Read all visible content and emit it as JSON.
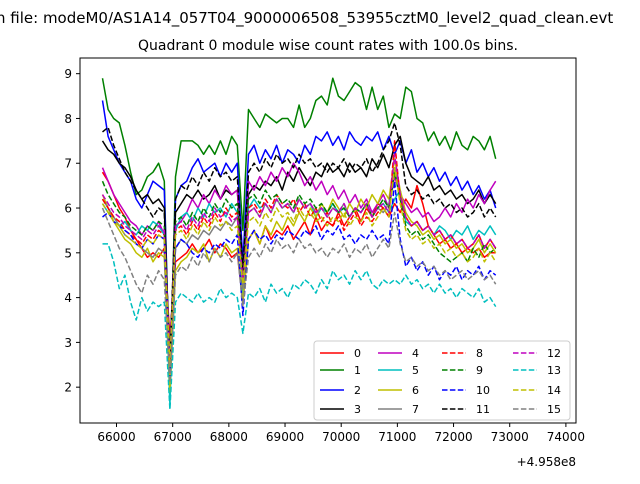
{
  "suptitle": "n file: modeM0/AS1A14_057T04_9000006508_53955cztM0_level2_quad_clean.evt",
  "chart_data": {
    "type": "line",
    "title": "Quadrant 0 module wise count rates with 100.0s bins.",
    "xlabel": "",
    "ylabel": "",
    "x_offset_label": "+4.958e8",
    "x_offset": 495800000,
    "xlim": [
      65350,
      74180
    ],
    "ylim": [
      1.2,
      9.35
    ],
    "x_ticks": [
      66000,
      67000,
      68000,
      69000,
      70000,
      71000,
      72000,
      73000,
      74000
    ],
    "x_tick_labels": [
      "66000",
      "67000",
      "68000",
      "69000",
      "70000",
      "71000",
      "72000",
      "73000",
      "74000"
    ],
    "y_ticks": [
      2,
      3,
      4,
      5,
      6,
      7,
      8,
      9
    ],
    "y_tick_labels": [
      "2",
      "3",
      "4",
      "5",
      "6",
      "7",
      "8",
      "9"
    ],
    "grid": false,
    "legend_position": "lower-right",
    "x_start": 65750,
    "x_step": 100,
    "series": [
      {
        "name": "0",
        "color": "#ff0000",
        "dash": "solid",
        "values": [
          6.8,
          6.6,
          6.3,
          6.0,
          5.8,
          5.5,
          5.3,
          5.1,
          4.9,
          5.0,
          4.9,
          5.1,
          3.1,
          4.8,
          4.9,
          5.0,
          5.2,
          5.0,
          5.1,
          5.3,
          5.0,
          5.2,
          5.1,
          4.9,
          5.0,
          3.9,
          5.3,
          5.5,
          5.2,
          5.6,
          5.3,
          5.5,
          5.4,
          5.6,
          5.3,
          5.5,
          5.7,
          5.4,
          5.8,
          5.5,
          5.7,
          5.6,
          5.9,
          5.6,
          5.8,
          6.0,
          5.7,
          6.0,
          5.8,
          6.1,
          6.0,
          5.8,
          6.1,
          5.9,
          6.2,
          6.0,
          6.5,
          6.1,
          5.6,
          5.4,
          5.2,
          5.3,
          5.1,
          5.2,
          5.0,
          5.1,
          5.0,
          5.1,
          4.9,
          5.0,
          5.0
        ]
      },
      {
        "name": "1",
        "color": "#008000",
        "dash": "solid",
        "values": [
          8.9,
          8.2,
          8.0,
          7.9,
          7.4,
          6.8,
          6.3,
          6.4,
          6.7,
          6.8,
          7.0,
          6.6,
          1.9,
          6.7,
          7.5,
          7.5,
          7.5,
          7.4,
          7.2,
          7.4,
          7.2,
          7.5,
          7.2,
          7.6,
          7.4,
          5.5,
          8.2,
          8.0,
          7.8,
          8.1,
          8.0,
          7.9,
          8.0,
          8.0,
          7.8,
          8.3,
          7.8,
          8.0,
          8.4,
          8.5,
          8.3,
          8.9,
          8.5,
          8.4,
          8.6,
          8.8,
          8.7,
          8.2,
          8.7,
          8.2,
          8.5,
          7.8,
          8.1,
          8.0,
          8.7,
          8.6,
          8.0,
          7.9,
          7.5,
          7.7,
          7.4,
          7.6,
          7.3,
          7.7,
          7.4,
          7.3,
          7.6,
          7.5,
          7.3,
          7.6,
          7.1
        ]
      },
      {
        "name": "2",
        "color": "#0000ff",
        "dash": "solid",
        "values": [
          8.4,
          7.6,
          7.3,
          7.0,
          6.8,
          6.6,
          6.2,
          6.0,
          6.3,
          6.6,
          6.5,
          6.4,
          2.1,
          6.2,
          6.5,
          6.6,
          6.9,
          7.1,
          6.8,
          6.9,
          7.0,
          6.7,
          7.0,
          6.8,
          7.0,
          4.8,
          7.2,
          7.4,
          7.0,
          7.3,
          7.1,
          7.4,
          7.0,
          7.3,
          7.2,
          7.0,
          7.4,
          7.2,
          7.6,
          7.5,
          7.7,
          7.4,
          7.6,
          7.3,
          7.7,
          7.5,
          7.4,
          7.6,
          7.5,
          7.7,
          7.3,
          7.6,
          7.2,
          7.5,
          7.0,
          7.3,
          6.8,
          7.0,
          6.7,
          6.9,
          6.6,
          6.8,
          6.5,
          6.7,
          6.4,
          6.6,
          6.3,
          6.5,
          6.2,
          6.4,
          6.0
        ]
      },
      {
        "name": "3",
        "color": "#000000",
        "dash": "solid",
        "values": [
          7.5,
          7.3,
          7.2,
          7.0,
          6.9,
          6.7,
          6.4,
          6.2,
          6.3,
          6.1,
          6.2,
          6.0,
          2.3,
          5.9,
          6.1,
          6.3,
          6.2,
          6.4,
          6.2,
          6.3,
          6.5,
          6.2,
          6.4,
          6.3,
          6.4,
          4.5,
          6.3,
          6.5,
          6.4,
          6.6,
          6.5,
          6.7,
          6.4,
          6.8,
          6.6,
          6.9,
          6.7,
          6.5,
          6.8,
          6.7,
          7.0,
          6.8,
          6.9,
          6.7,
          7.0,
          6.8,
          6.9,
          6.7,
          7.1,
          6.9,
          7.2,
          6.9,
          7.4,
          7.6,
          7.0,
          6.7,
          6.6,
          6.5,
          6.7,
          6.4,
          6.5,
          6.3,
          6.4,
          6.2,
          6.3,
          6.1,
          6.2,
          6.4,
          6.1,
          6.3,
          6.1
        ]
      },
      {
        "name": "4",
        "color": "#bf00bf",
        "dash": "solid",
        "values": [
          6.9,
          6.6,
          6.3,
          6.1,
          5.9,
          5.7,
          5.6,
          5.4,
          5.6,
          5.5,
          5.7,
          5.4,
          2.8,
          5.6,
          5.7,
          5.9,
          6.2,
          6.0,
          6.3,
          6.1,
          6.4,
          6.2,
          6.5,
          6.3,
          6.4,
          4.3,
          6.6,
          6.4,
          6.7,
          6.5,
          6.8,
          6.6,
          6.9,
          6.7,
          7.0,
          6.8,
          6.5,
          6.7,
          6.4,
          6.6,
          6.3,
          6.5,
          6.2,
          6.4,
          6.1,
          6.3,
          6.0,
          6.2,
          5.9,
          6.1,
          6.3,
          6.0,
          6.7,
          6.3,
          6.1,
          5.9,
          6.0,
          5.8,
          5.9,
          5.7,
          5.8,
          6.0,
          5.8,
          6.1,
          5.9,
          6.2,
          6.0,
          6.3,
          6.1,
          6.4,
          6.6
        ]
      },
      {
        "name": "5",
        "color": "#00bfbf",
        "dash": "solid",
        "values": [
          6.1,
          5.9,
          5.8,
          5.6,
          5.7,
          5.5,
          5.4,
          5.6,
          5.5,
          5.7,
          5.6,
          5.4,
          1.6,
          5.5,
          5.8,
          5.9,
          5.7,
          6.0,
          5.8,
          6.1,
          5.9,
          6.0,
          5.8,
          6.1,
          5.9,
          4.1,
          6.0,
          6.2,
          6.0,
          6.1,
          5.9,
          6.2,
          6.0,
          6.1,
          5.9,
          6.2,
          6.0,
          6.1,
          5.8,
          6.0,
          5.9,
          6.1,
          5.9,
          6.0,
          5.8,
          6.0,
          5.9,
          6.1,
          5.8,
          6.0,
          6.1,
          5.9,
          6.2,
          6.4,
          5.7,
          5.6,
          5.7,
          5.5,
          5.6,
          5.4,
          5.6,
          5.5,
          5.3,
          5.5,
          5.4,
          5.6,
          5.3,
          5.5,
          5.4,
          5.6,
          5.4
        ]
      },
      {
        "name": "6",
        "color": "#bfbf00",
        "dash": "solid",
        "values": [
          6.3,
          6.0,
          5.7,
          5.5,
          5.3,
          5.2,
          5.0,
          4.9,
          5.1,
          4.8,
          5.0,
          4.9,
          1.9,
          4.6,
          4.8,
          4.9,
          5.1,
          5.0,
          5.2,
          4.8,
          5.1,
          4.9,
          5.2,
          5.0,
          5.1,
          3.9,
          5.3,
          5.5,
          5.2,
          5.6,
          5.4,
          5.7,
          5.5,
          5.8,
          5.6,
          5.9,
          5.7,
          6.0,
          5.8,
          6.1,
          5.9,
          6.2,
          6.0,
          5.8,
          6.1,
          5.9,
          6.2,
          6.0,
          6.3,
          6.1,
          6.4,
          6.2,
          7.1,
          6.4,
          5.9,
          5.7,
          5.6,
          5.4,
          5.5,
          5.3,
          5.4,
          5.2,
          5.3,
          5.1,
          5.2,
          5.0,
          5.1,
          5.3,
          5.0,
          5.2,
          5.0
        ]
      },
      {
        "name": "7",
        "color": "#808080",
        "dash": "solid",
        "values": [
          6.2,
          6.0,
          5.8,
          5.6,
          5.4,
          5.3,
          5.2,
          5.1,
          5.0,
          4.9,
          5.1,
          5.0,
          2.4,
          5.1,
          5.3,
          5.2,
          5.4,
          5.3,
          5.5,
          5.4,
          5.6,
          5.5,
          5.7,
          5.6,
          5.8,
          4.2,
          5.9,
          6.0,
          5.8,
          6.1,
          5.9,
          6.2,
          6.0,
          6.1,
          5.9,
          6.2,
          6.0,
          6.1,
          5.9,
          6.0,
          5.8,
          6.0,
          5.9,
          6.1,
          5.8,
          6.0,
          5.9,
          6.1,
          5.8,
          6.0,
          5.9,
          6.1,
          6.9,
          6.3,
          5.8,
          5.6,
          5.7,
          5.5,
          5.6,
          5.4,
          5.5,
          5.3,
          5.4,
          5.2,
          5.3,
          5.1,
          5.2,
          5.4,
          5.1,
          5.3,
          5.1
        ]
      },
      {
        "name": "8",
        "color": "#ff0000",
        "dash": "dashed",
        "values": [
          6.2,
          6.0,
          5.8,
          5.7,
          5.5,
          5.4,
          5.3,
          5.2,
          5.4,
          5.3,
          5.5,
          5.4,
          2.6,
          5.5,
          5.6,
          5.4,
          5.7,
          5.5,
          5.8,
          5.6,
          5.9,
          5.7,
          6.0,
          5.8,
          5.9,
          4.4,
          6.0,
          6.1,
          5.9,
          6.2,
          6.0,
          6.3,
          6.1,
          6.0,
          6.2,
          5.9,
          6.1,
          5.8,
          6.0,
          5.7,
          5.9,
          5.6,
          5.8,
          5.5,
          5.7,
          5.9,
          5.6,
          5.8,
          5.7,
          5.9,
          6.0,
          5.8,
          7.5,
          6.2,
          5.8,
          5.6,
          5.7,
          5.5,
          5.6,
          5.4,
          5.5,
          5.3,
          5.4,
          5.2,
          5.3,
          5.1,
          5.2,
          5.4,
          5.1,
          5.3,
          5.1
        ]
      },
      {
        "name": "9",
        "color": "#008000",
        "dash": "dashed",
        "values": [
          6.6,
          6.3,
          6.1,
          5.9,
          5.8,
          5.6,
          5.5,
          5.4,
          5.6,
          5.5,
          5.7,
          5.6,
          2.7,
          5.7,
          5.8,
          5.6,
          5.9,
          5.7,
          6.0,
          5.8,
          6.1,
          5.9,
          6.2,
          6.0,
          6.1,
          4.5,
          6.2,
          6.3,
          6.1,
          6.4,
          6.2,
          6.3,
          6.1,
          6.2,
          6.0,
          6.3,
          6.1,
          6.2,
          6.0,
          6.1,
          5.9,
          6.1,
          5.9,
          6.0,
          5.8,
          6.0,
          5.9,
          6.1,
          5.8,
          6.0,
          6.2,
          6.0,
          6.8,
          6.2,
          5.6,
          5.4,
          5.5,
          5.3,
          5.4,
          5.2,
          5.0,
          4.9,
          4.8,
          4.9,
          5.0,
          4.8,
          5.1,
          4.9,
          5.2,
          5.0,
          5.1
        ]
      },
      {
        "name": "10",
        "color": "#0000ff",
        "dash": "dashed",
        "values": [
          5.8,
          5.9,
          5.7,
          5.6,
          5.5,
          5.4,
          5.2,
          5.1,
          5.3,
          5.2,
          5.4,
          5.3,
          2.2,
          5.1,
          5.3,
          5.2,
          5.0,
          4.9,
          5.1,
          5.0,
          5.2,
          5.1,
          5.3,
          5.2,
          5.4,
          3.6,
          5.3,
          5.5,
          5.3,
          5.4,
          5.2,
          5.4,
          5.3,
          5.5,
          5.4,
          5.3,
          5.5,
          5.4,
          5.6,
          5.3,
          5.5,
          5.4,
          5.6,
          5.3,
          5.4,
          5.2,
          5.4,
          5.3,
          5.5,
          5.3,
          5.4,
          5.2,
          6.6,
          5.3,
          4.7,
          4.9,
          4.6,
          4.8,
          4.5,
          4.7,
          4.4,
          4.6,
          4.5,
          4.7,
          4.4,
          4.6,
          4.5,
          4.7,
          4.4,
          4.6,
          4.5
        ]
      },
      {
        "name": "11",
        "color": "#000000",
        "dash": "dashed",
        "values": [
          7.7,
          7.8,
          7.4,
          7.1,
          6.8,
          6.6,
          6.4,
          6.2,
          6.0,
          5.8,
          6.0,
          5.9,
          2.5,
          6.2,
          6.5,
          6.4,
          6.7,
          6.5,
          6.8,
          6.6,
          6.9,
          6.7,
          6.8,
          6.6,
          6.7,
          4.6,
          6.8,
          7.0,
          6.8,
          7.1,
          6.9,
          7.2,
          7.0,
          7.1,
          6.9,
          7.2,
          7.0,
          7.1,
          6.9,
          7.0,
          6.8,
          7.0,
          6.9,
          7.1,
          6.8,
          7.0,
          6.9,
          7.1,
          6.8,
          7.0,
          7.3,
          7.5,
          7.9,
          7.4,
          6.5,
          6.3,
          6.4,
          6.2,
          6.3,
          6.1,
          6.2,
          6.0,
          6.1,
          5.9,
          6.0,
          5.8,
          5.9,
          6.1,
          5.8,
          6.0,
          5.8
        ]
      },
      {
        "name": "12",
        "color": "#bf00bf",
        "dash": "dashed",
        "values": [
          6.3,
          6.1,
          5.9,
          5.8,
          5.6,
          5.5,
          5.4,
          5.3,
          5.5,
          5.4,
          5.6,
          5.5,
          2.6,
          5.6,
          5.7,
          5.5,
          5.8,
          5.6,
          5.9,
          5.7,
          6.0,
          5.8,
          5.9,
          5.7,
          5.8,
          4.4,
          5.9,
          6.0,
          5.8,
          6.1,
          5.9,
          6.2,
          6.0,
          6.1,
          5.9,
          6.2,
          6.0,
          6.1,
          5.9,
          6.0,
          5.8,
          6.0,
          5.9,
          6.1,
          5.8,
          6.0,
          5.9,
          6.1,
          5.8,
          6.0,
          6.1,
          5.9,
          7.2,
          6.3,
          5.8,
          5.6,
          5.7,
          5.5,
          5.6,
          5.4,
          5.5,
          5.3,
          5.4,
          5.2,
          5.3,
          5.1,
          5.2,
          5.4,
          5.1,
          5.3,
          5.1
        ]
      },
      {
        "name": "13",
        "color": "#00bfbf",
        "dash": "dashed",
        "values": [
          5.2,
          5.2,
          4.8,
          4.2,
          4.5,
          3.9,
          3.5,
          4.0,
          3.7,
          3.9,
          3.8,
          3.9,
          1.5,
          3.9,
          4.1,
          4.0,
          3.9,
          4.1,
          3.9,
          4.0,
          3.9,
          4.2,
          4.0,
          4.1,
          4.0,
          3.2,
          4.1,
          4.0,
          4.2,
          3.9,
          4.3,
          4.1,
          4.2,
          4.0,
          4.3,
          4.2,
          4.4,
          4.3,
          4.1,
          4.4,
          4.2,
          4.6,
          4.4,
          4.5,
          4.3,
          4.6,
          4.4,
          4.6,
          4.3,
          4.2,
          4.4,
          4.3,
          4.4,
          4.3,
          4.5,
          4.3,
          4.4,
          4.2,
          4.3,
          4.1,
          4.3,
          4.1,
          4.2,
          4.0,
          4.2,
          4.1,
          4.0,
          4.2,
          3.9,
          4.0,
          3.8
        ]
      },
      {
        "name": "14",
        "color": "#bfbf00",
        "dash": "dashed",
        "values": [
          6.1,
          5.9,
          5.7,
          5.6,
          5.4,
          5.3,
          5.2,
          5.1,
          5.3,
          5.2,
          5.4,
          5.3,
          2.5,
          5.4,
          5.5,
          5.3,
          5.6,
          5.4,
          5.7,
          5.5,
          5.8,
          5.6,
          5.7,
          5.5,
          5.6,
          4.3,
          5.7,
          5.8,
          5.6,
          5.9,
          5.7,
          6.0,
          5.8,
          5.9,
          5.7,
          6.0,
          5.8,
          5.9,
          5.7,
          5.8,
          5.6,
          5.8,
          5.7,
          5.9,
          5.6,
          5.8,
          5.7,
          5.9,
          5.6,
          5.8,
          6.0,
          5.8,
          6.9,
          6.1,
          5.5,
          5.3,
          5.4,
          5.2,
          5.3,
          5.1,
          5.2,
          5.0,
          5.1,
          4.9,
          5.0,
          4.8,
          4.9,
          5.1,
          4.8,
          5.0,
          4.8
        ]
      },
      {
        "name": "15",
        "color": "#808080",
        "dash": "dashed",
        "values": [
          6.0,
          5.7,
          5.4,
          5.1,
          4.9,
          4.6,
          4.3,
          4.1,
          4.5,
          4.3,
          4.6,
          4.4,
          2.1,
          4.5,
          4.7,
          4.6,
          4.9,
          4.7,
          5.0,
          4.8,
          5.1,
          4.9,
          5.0,
          4.8,
          5.0,
          3.8,
          4.9,
          5.1,
          4.9,
          5.2,
          5.0,
          5.3,
          5.1,
          5.2,
          5.0,
          5.3,
          5.1,
          5.2,
          5.0,
          5.1,
          4.9,
          5.1,
          5.0,
          5.2,
          4.9,
          5.1,
          5.0,
          5.2,
          4.9,
          5.1,
          5.3,
          5.1,
          5.9,
          5.2,
          4.8,
          4.9,
          4.7,
          4.8,
          4.6,
          4.7,
          4.5,
          4.6,
          4.4,
          4.5,
          4.6,
          4.4,
          4.5,
          4.6,
          4.4,
          4.5,
          4.3
        ]
      }
    ]
  }
}
